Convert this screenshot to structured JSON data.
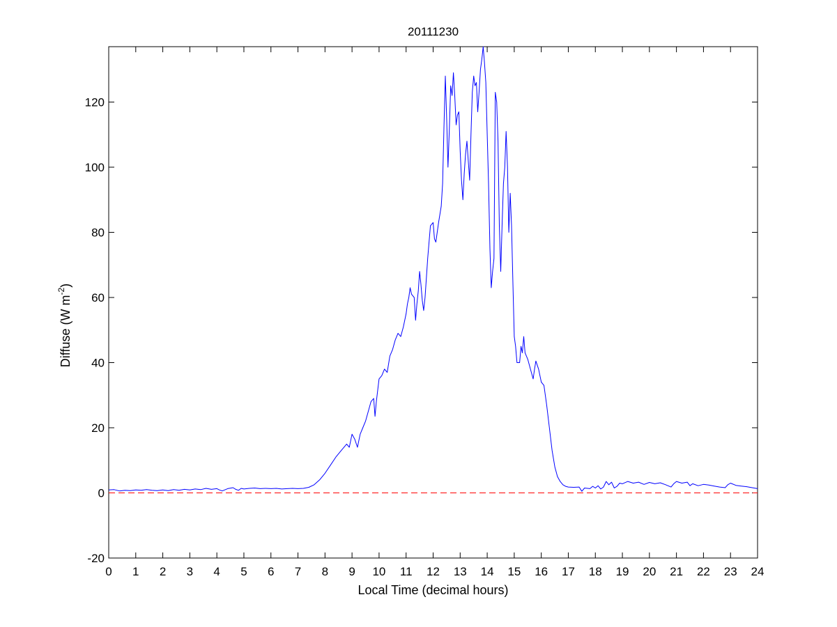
{
  "chart_data": {
    "type": "line",
    "title": "20111230",
    "xlabel": "Local Time (decimal hours)",
    "ylabel": {
      "prefix": "Diffuse (W m",
      "superscript": "-2",
      "suffix": ")"
    },
    "xlim": [
      0,
      24
    ],
    "ylim": [
      -20,
      137
    ],
    "xticks": [
      0,
      1,
      2,
      3,
      4,
      5,
      6,
      7,
      8,
      9,
      10,
      11,
      12,
      13,
      14,
      15,
      16,
      17,
      18,
      19,
      20,
      21,
      22,
      23,
      24
    ],
    "yticks": [
      -20,
      0,
      20,
      40,
      60,
      80,
      100,
      120
    ],
    "grid": false,
    "legend": "none",
    "colors": {
      "series": "#0000ff",
      "reference": "#ff0000",
      "axes": "#000000"
    },
    "series": [
      {
        "style": "solid",
        "points": [
          [
            0.0,
            0.9
          ],
          [
            0.2,
            1.0
          ],
          [
            0.4,
            0.6
          ],
          [
            0.6,
            0.8
          ],
          [
            0.8,
            0.7
          ],
          [
            1.0,
            0.9
          ],
          [
            1.2,
            0.8
          ],
          [
            1.4,
            1.0
          ],
          [
            1.6,
            0.8
          ],
          [
            1.8,
            0.7
          ],
          [
            2.0,
            0.9
          ],
          [
            2.2,
            0.7
          ],
          [
            2.4,
            1.0
          ],
          [
            2.6,
            0.8
          ],
          [
            2.8,
            1.1
          ],
          [
            3.0,
            0.9
          ],
          [
            3.2,
            1.2
          ],
          [
            3.4,
            1.0
          ],
          [
            3.6,
            1.4
          ],
          [
            3.8,
            1.1
          ],
          [
            4.0,
            1.3
          ],
          [
            4.1,
            0.9
          ],
          [
            4.2,
            0.6
          ],
          [
            4.4,
            1.3
          ],
          [
            4.6,
            1.6
          ],
          [
            4.7,
            1.1
          ],
          [
            4.8,
            0.8
          ],
          [
            4.9,
            1.4
          ],
          [
            5.0,
            1.2
          ],
          [
            5.2,
            1.4
          ],
          [
            5.4,
            1.5
          ],
          [
            5.6,
            1.3
          ],
          [
            5.8,
            1.4
          ],
          [
            6.0,
            1.3
          ],
          [
            6.2,
            1.4
          ],
          [
            6.4,
            1.2
          ],
          [
            6.6,
            1.3
          ],
          [
            6.8,
            1.4
          ],
          [
            7.0,
            1.3
          ],
          [
            7.2,
            1.4
          ],
          [
            7.4,
            1.7
          ],
          [
            7.6,
            2.5
          ],
          [
            7.8,
            4.0
          ],
          [
            8.0,
            6.0
          ],
          [
            8.2,
            8.5
          ],
          [
            8.4,
            11.0
          ],
          [
            8.6,
            13.0
          ],
          [
            8.8,
            15.0
          ],
          [
            8.9,
            14.0
          ],
          [
            9.0,
            18.0
          ],
          [
            9.1,
            16.5
          ],
          [
            9.2,
            14.0
          ],
          [
            9.3,
            18.0
          ],
          [
            9.4,
            20.0
          ],
          [
            9.5,
            22.0
          ],
          [
            9.6,
            25.0
          ],
          [
            9.7,
            28.0
          ],
          [
            9.8,
            29.0
          ],
          [
            9.85,
            23.5
          ],
          [
            9.9,
            28.0
          ],
          [
            10.0,
            35.0
          ],
          [
            10.1,
            36.0
          ],
          [
            10.2,
            38.0
          ],
          [
            10.3,
            37.0
          ],
          [
            10.4,
            42.0
          ],
          [
            10.5,
            44.0
          ],
          [
            10.6,
            47.0
          ],
          [
            10.7,
            49.0
          ],
          [
            10.8,
            48.0
          ],
          [
            10.9,
            51.0
          ],
          [
            11.0,
            55.0
          ],
          [
            11.05,
            58.0
          ],
          [
            11.1,
            60.0
          ],
          [
            11.15,
            63.0
          ],
          [
            11.2,
            61.0
          ],
          [
            11.3,
            60.0
          ],
          [
            11.35,
            53.0
          ],
          [
            11.4,
            58.0
          ],
          [
            11.45,
            62.0
          ],
          [
            11.5,
            68.0
          ],
          [
            11.55,
            64.0
          ],
          [
            11.6,
            59.0
          ],
          [
            11.65,
            56.0
          ],
          [
            11.7,
            60.0
          ],
          [
            11.8,
            72.0
          ],
          [
            11.9,
            82.0
          ],
          [
            12.0,
            83.0
          ],
          [
            12.05,
            78.0
          ],
          [
            12.1,
            77.0
          ],
          [
            12.2,
            83.0
          ],
          [
            12.3,
            88.0
          ],
          [
            12.35,
            95.0
          ],
          [
            12.4,
            112.0
          ],
          [
            12.45,
            128.0
          ],
          [
            12.5,
            115.0
          ],
          [
            12.55,
            100.0
          ],
          [
            12.6,
            112.0
          ],
          [
            12.65,
            125.0
          ],
          [
            12.7,
            122.0
          ],
          [
            12.75,
            129.0
          ],
          [
            12.8,
            122.0
          ],
          [
            12.85,
            113.0
          ],
          [
            12.9,
            116.0
          ],
          [
            12.95,
            117.0
          ],
          [
            13.0,
            105.0
          ],
          [
            13.05,
            96.0
          ],
          [
            13.1,
            90.0
          ],
          [
            13.15,
            98.0
          ],
          [
            13.2,
            104.0
          ],
          [
            13.25,
            108.0
          ],
          [
            13.3,
            102.0
          ],
          [
            13.35,
            96.0
          ],
          [
            13.4,
            110.0
          ],
          [
            13.45,
            123.0
          ],
          [
            13.5,
            128.0
          ],
          [
            13.55,
            125.0
          ],
          [
            13.6,
            126.0
          ],
          [
            13.65,
            117.0
          ],
          [
            13.7,
            123.0
          ],
          [
            13.75,
            130.0
          ],
          [
            13.8,
            133.0
          ],
          [
            13.85,
            137.0
          ],
          [
            13.9,
            132.0
          ],
          [
            13.95,
            126.0
          ],
          [
            14.0,
            110.0
          ],
          [
            14.05,
            95.0
          ],
          [
            14.1,
            75.0
          ],
          [
            14.15,
            63.0
          ],
          [
            14.2,
            68.0
          ],
          [
            14.25,
            72.0
          ],
          [
            14.3,
            123.0
          ],
          [
            14.35,
            120.0
          ],
          [
            14.4,
            108.0
          ],
          [
            14.45,
            82.0
          ],
          [
            14.5,
            68.0
          ],
          [
            14.55,
            82.0
          ],
          [
            14.6,
            95.0
          ],
          [
            14.65,
            100.0
          ],
          [
            14.7,
            111.0
          ],
          [
            14.75,
            100.0
          ],
          [
            14.8,
            80.0
          ],
          [
            14.85,
            92.0
          ],
          [
            14.9,
            82.0
          ],
          [
            14.95,
            65.0
          ],
          [
            15.0,
            48.0
          ],
          [
            15.05,
            45.0
          ],
          [
            15.1,
            40.0
          ],
          [
            15.2,
            40.0
          ],
          [
            15.25,
            45.0
          ],
          [
            15.3,
            43.0
          ],
          [
            15.35,
            48.0
          ],
          [
            15.4,
            43.0
          ],
          [
            15.5,
            41.0
          ],
          [
            15.6,
            38.0
          ],
          [
            15.7,
            35.0
          ],
          [
            15.75,
            38.0
          ],
          [
            15.8,
            40.5
          ],
          [
            15.9,
            38.0
          ],
          [
            16.0,
            34.0
          ],
          [
            16.1,
            33.0
          ],
          [
            16.2,
            27.0
          ],
          [
            16.3,
            20.0
          ],
          [
            16.4,
            13.0
          ],
          [
            16.5,
            8.0
          ],
          [
            16.6,
            5.0
          ],
          [
            16.7,
            3.5
          ],
          [
            16.8,
            2.5
          ],
          [
            16.9,
            2.0
          ],
          [
            17.0,
            1.8
          ],
          [
            17.2,
            1.7
          ],
          [
            17.4,
            1.8
          ],
          [
            17.5,
            0.5
          ],
          [
            17.6,
            1.5
          ],
          [
            17.8,
            1.3
          ],
          [
            17.9,
            2.0
          ],
          [
            18.0,
            1.5
          ],
          [
            18.1,
            2.2
          ],
          [
            18.2,
            1.2
          ],
          [
            18.3,
            1.8
          ],
          [
            18.4,
            3.5
          ],
          [
            18.5,
            2.5
          ],
          [
            18.6,
            3.3
          ],
          [
            18.7,
            1.5
          ],
          [
            18.8,
            2.0
          ],
          [
            18.9,
            3.0
          ],
          [
            19.0,
            2.8
          ],
          [
            19.2,
            3.5
          ],
          [
            19.4,
            3.0
          ],
          [
            19.6,
            3.3
          ],
          [
            19.8,
            2.6
          ],
          [
            20.0,
            3.2
          ],
          [
            20.2,
            2.8
          ],
          [
            20.4,
            3.1
          ],
          [
            20.6,
            2.5
          ],
          [
            20.8,
            1.8
          ],
          [
            20.9,
            2.8
          ],
          [
            21.0,
            3.5
          ],
          [
            21.2,
            3.0
          ],
          [
            21.4,
            3.3
          ],
          [
            21.5,
            2.2
          ],
          [
            21.6,
            2.8
          ],
          [
            21.8,
            2.2
          ],
          [
            22.0,
            2.6
          ],
          [
            22.2,
            2.4
          ],
          [
            22.4,
            2.1
          ],
          [
            22.6,
            1.8
          ],
          [
            22.8,
            1.6
          ],
          [
            22.9,
            2.5
          ],
          [
            23.0,
            3.0
          ],
          [
            23.2,
            2.3
          ],
          [
            23.4,
            2.1
          ],
          [
            23.6,
            1.9
          ],
          [
            23.8,
            1.6
          ],
          [
            24.0,
            1.3
          ]
        ]
      },
      {
        "style": "dashed",
        "points": [
          [
            0,
            0
          ],
          [
            24,
            0
          ]
        ]
      }
    ]
  }
}
